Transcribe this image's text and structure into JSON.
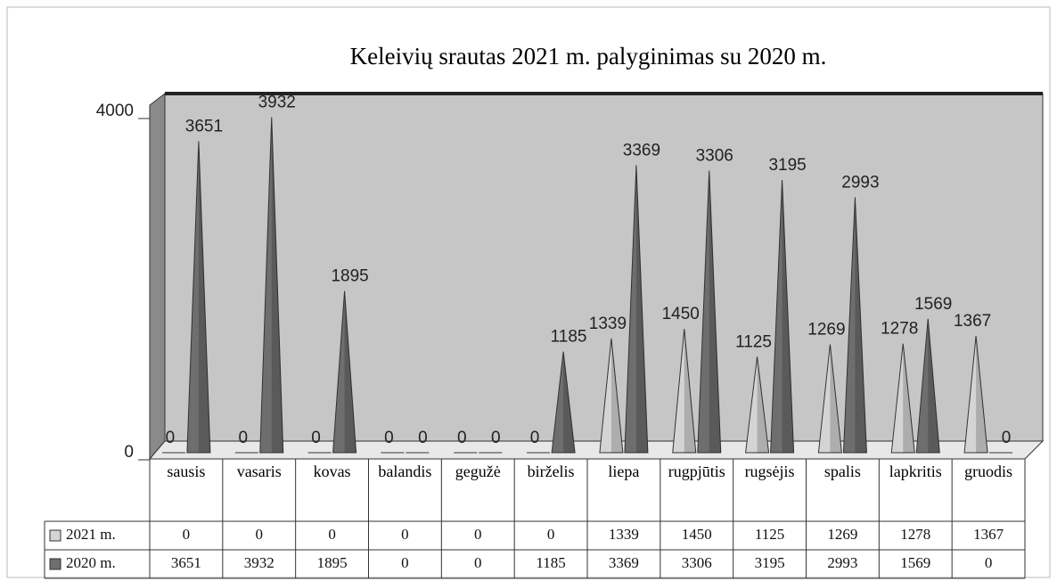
{
  "chart_data": {
    "type": "cone",
    "title": "Keleivių srautas 2021 m. palyginimas su 2020 m.",
    "categories": [
      "sausis",
      "vasaris",
      "kovas",
      "balandis",
      "gegužė",
      "birželis",
      "liepa",
      "rugpjūtis",
      "rugsėjis",
      "spalis",
      "lapkritis",
      "gruodis"
    ],
    "series": [
      {
        "name": "2021 m.",
        "color": "#d4d4d4",
        "values": [
          0,
          0,
          0,
          0,
          0,
          0,
          1339,
          1450,
          1125,
          1269,
          1278,
          1367
        ]
      },
      {
        "name": "2020 m.",
        "color": "#6e6e6e",
        "values": [
          3651,
          3932,
          1895,
          0,
          0,
          1185,
          3369,
          3306,
          3195,
          2993,
          1569,
          0
        ]
      }
    ],
    "ylim": [
      0,
      4000
    ],
    "yticks": [
      0,
      4000
    ]
  }
}
